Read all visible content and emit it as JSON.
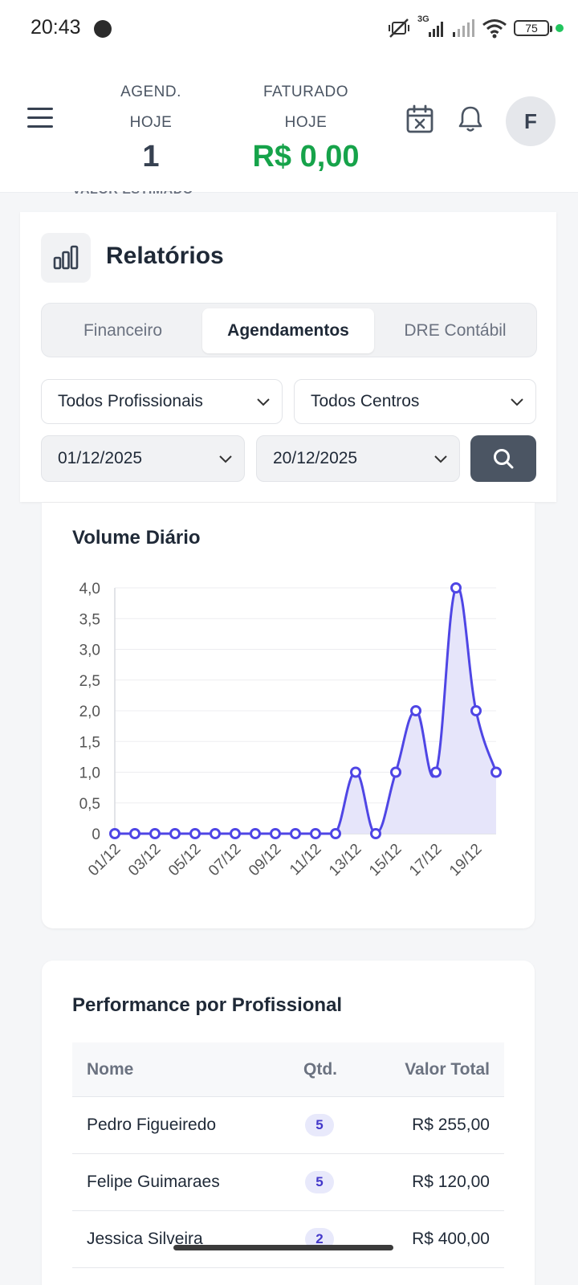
{
  "status_bar": {
    "time": "20:43",
    "network": "3G",
    "battery": "75"
  },
  "header": {
    "agend_label_1": "AGEND.",
    "agend_label_2": "HOJE",
    "agend_value": "1",
    "fat_label_1": "FATURADO",
    "fat_label_2": "HOJE",
    "fat_value": "R$ 0,00",
    "avatar_initial": "F",
    "icons": [
      "menu-icon",
      "calendar-icon",
      "bell-icon"
    ],
    "accent_green": "#16a34a"
  },
  "peek_text": "VALOR ESTIMADO",
  "reports": {
    "title": "Relatórios",
    "icon": "bar-chart-icon",
    "tabs": [
      {
        "label": "Financeiro",
        "active": false
      },
      {
        "label": "Agendamentos",
        "active": true
      },
      {
        "label": "DRE Contábil",
        "active": false
      }
    ],
    "filters": {
      "professional": "Todos Profissionais",
      "center": "Todos Centros",
      "date_start": "01/12/2025",
      "date_end": "20/12/2025"
    }
  },
  "chart_data": {
    "type": "line",
    "title": "Volume Diário",
    "x": [
      "01/12",
      "02/12",
      "03/12",
      "04/12",
      "05/12",
      "06/12",
      "07/12",
      "08/12",
      "09/12",
      "10/12",
      "11/12",
      "12/12",
      "13/12",
      "14/12",
      "15/12",
      "16/12",
      "17/12",
      "18/12",
      "19/12",
      "20/12"
    ],
    "x_tick_labels": [
      "01/12",
      "03/12",
      "05/12",
      "07/12",
      "09/12",
      "11/12",
      "13/12",
      "15/12",
      "17/12",
      "19/12"
    ],
    "series": [
      {
        "values": [
          0,
          0,
          0,
          0,
          0,
          0,
          0,
          0,
          0,
          0,
          0,
          0,
          1,
          0,
          1,
          2,
          1,
          4,
          2,
          1
        ],
        "color": "#4f46e5",
        "fill": "#e6e5fa"
      }
    ],
    "y_ticks": [
      "0",
      "0,5",
      "1,0",
      "1,5",
      "2,0",
      "2,5",
      "3,0",
      "3,5",
      "4,0"
    ],
    "ylim": [
      0,
      4
    ],
    "grid": true,
    "legend": "none"
  },
  "performance": {
    "title": "Performance por Profissional",
    "columns": [
      "Nome",
      "Qtd.",
      "Valor Total"
    ],
    "rows": [
      {
        "name": "Pedro Figueiredo",
        "qtd": "5",
        "total": "R$ 255,00"
      },
      {
        "name": "Felipe Guimaraes",
        "qtd": "5",
        "total": "R$ 120,00"
      },
      {
        "name": "Jessica Silveira",
        "qtd": "2",
        "total": "R$ 400,00"
      }
    ]
  }
}
